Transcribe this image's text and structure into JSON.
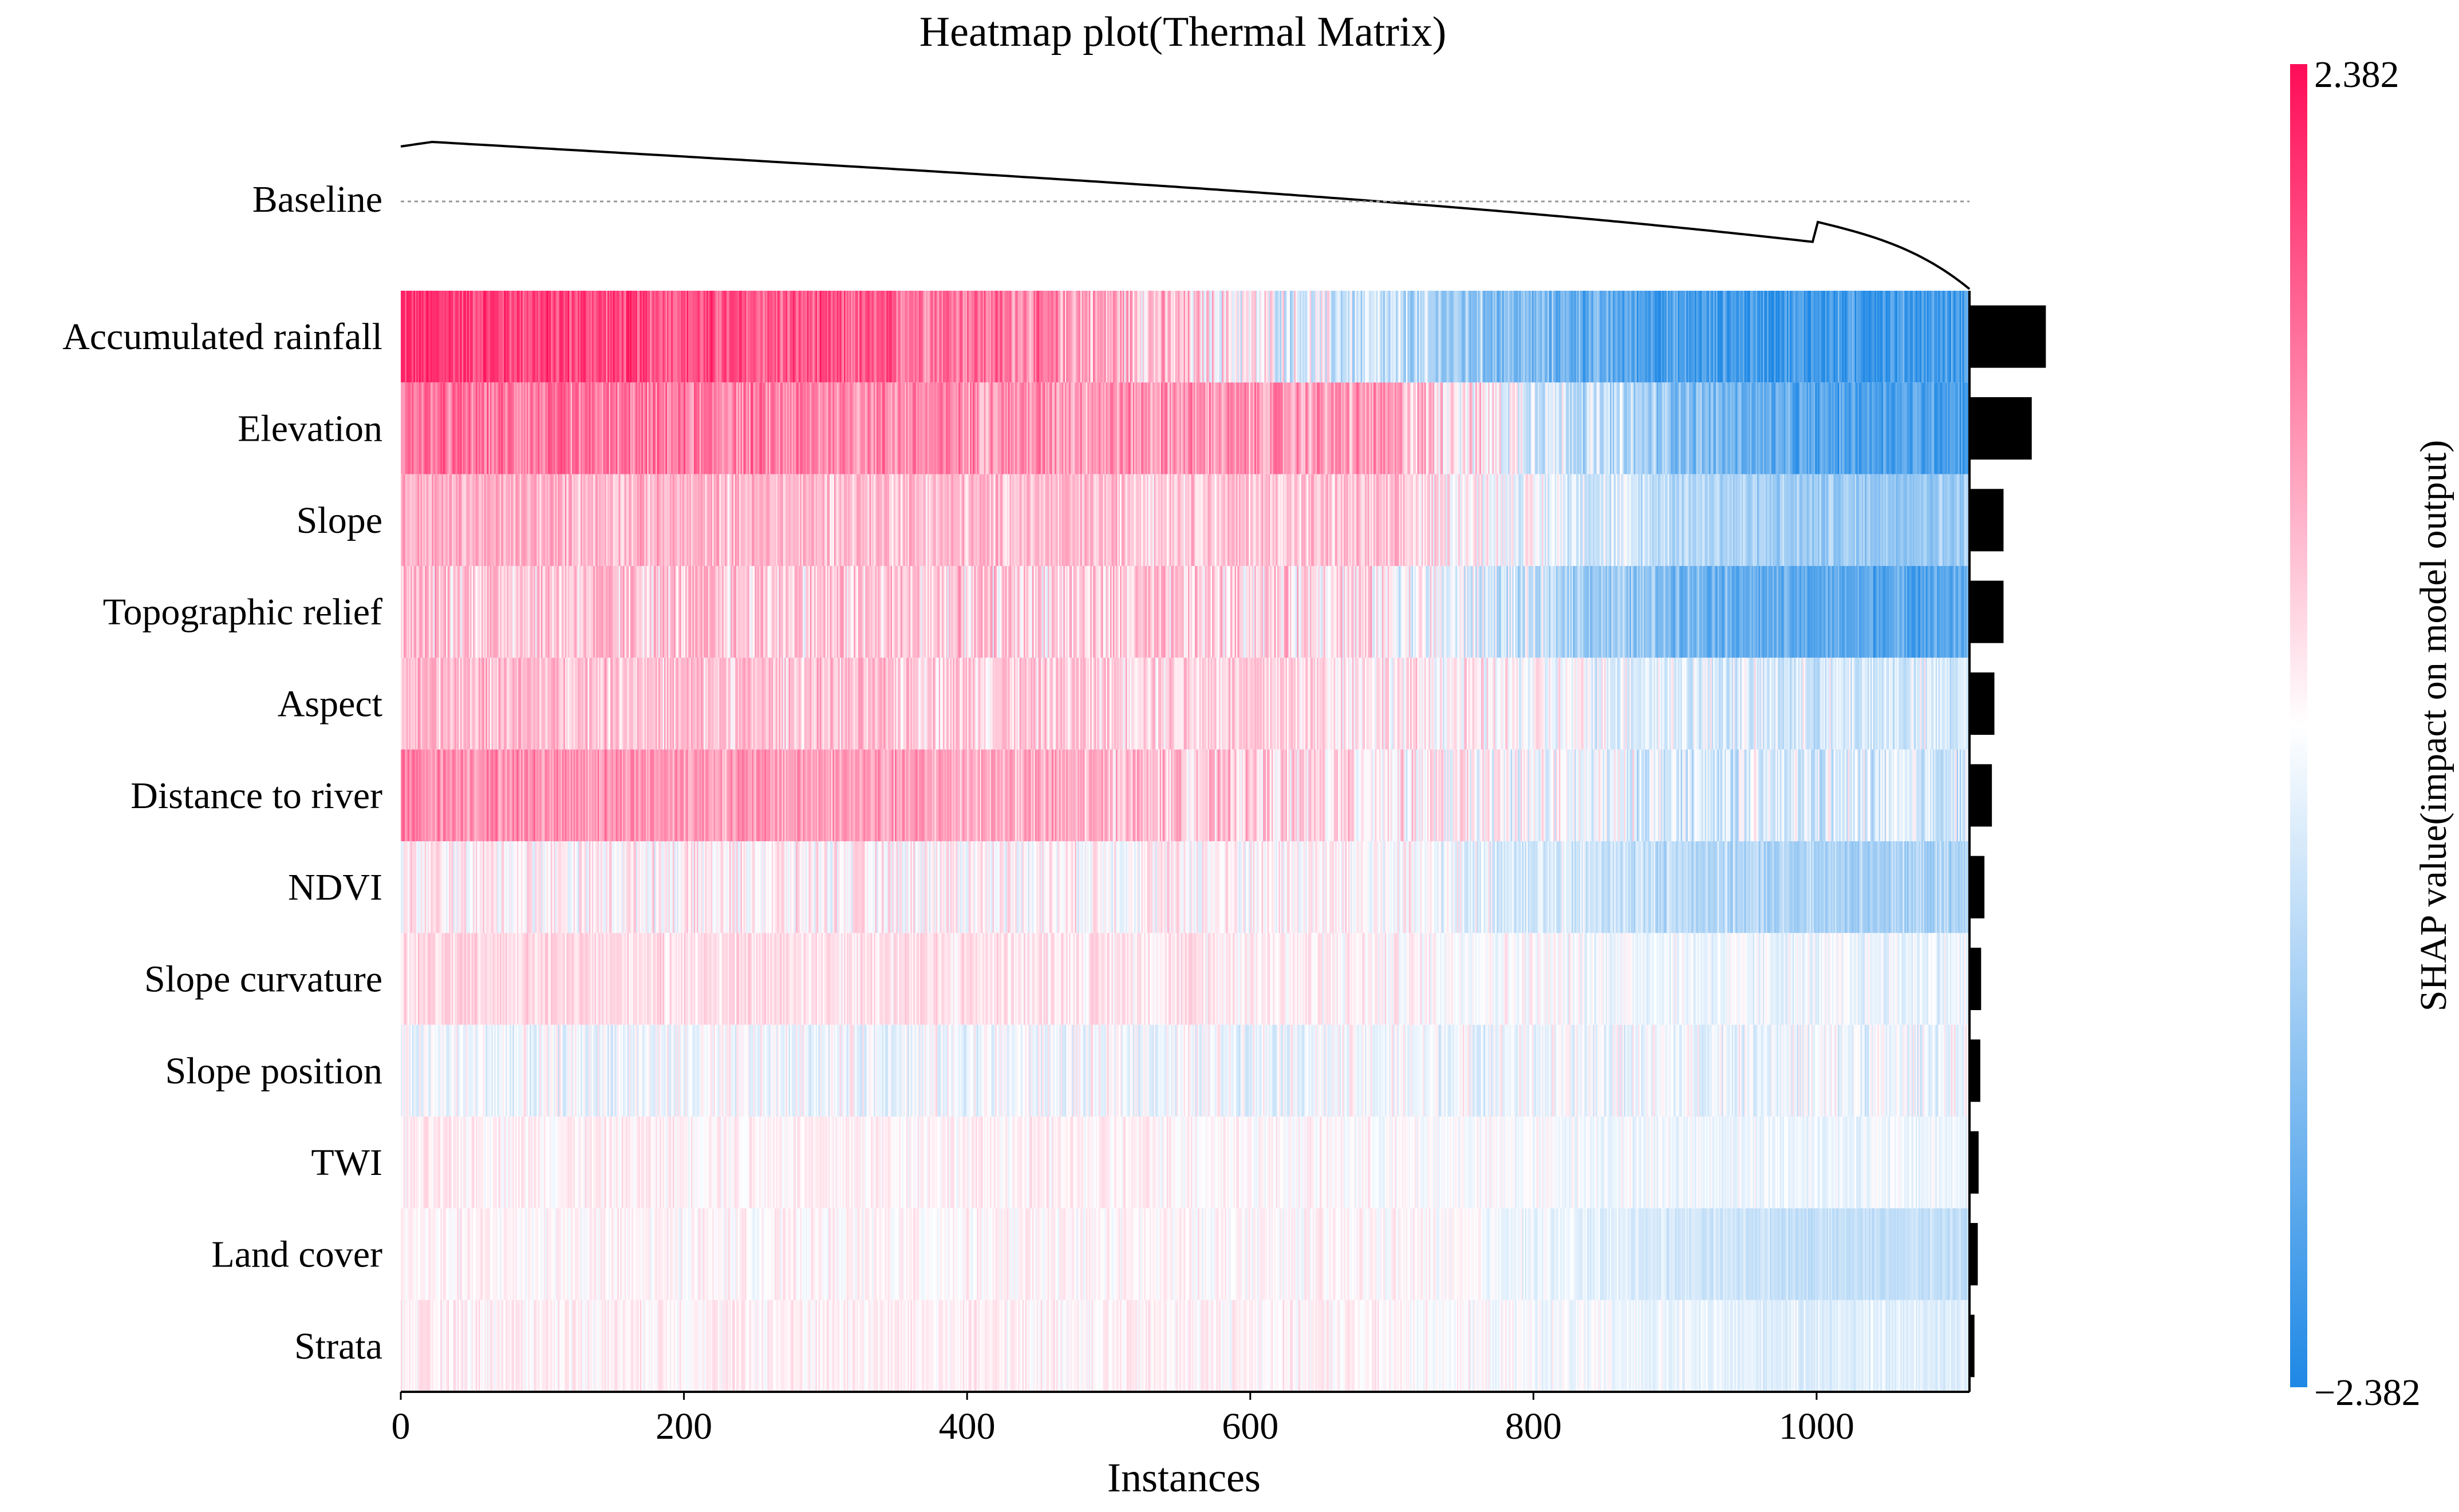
{
  "chart_data": {
    "type": "heatmap",
    "title": "Heatmap plot(Thermal Matrix)",
    "xlabel": "Instances",
    "xlim": [
      0,
      1108
    ],
    "xticks": [
      0,
      200,
      400,
      600,
      800,
      1000
    ],
    "baseline_label": "Baseline",
    "features": [
      {
        "name": "Accumulated rainfall",
        "importance": 0.92,
        "front": 1.9,
        "tail": -1.9,
        "mid": 0.37,
        "noise": 0.55
      },
      {
        "name": "Elevation",
        "importance": 0.75,
        "front": 1.2,
        "tail": -1.7,
        "mid": 0.62,
        "noise": 0.5
      },
      {
        "name": "Slope",
        "importance": 0.41,
        "front": 0.6,
        "tail": -0.85,
        "mid": 0.62,
        "noise": 0.35
      },
      {
        "name": "Topographic relief",
        "importance": 0.41,
        "front": 0.45,
        "tail": -1.6,
        "mid": 0.6,
        "noise": 0.45
      },
      {
        "name": "Aspect",
        "importance": 0.3,
        "front": 0.5,
        "tail": -0.3,
        "mid": 0.55,
        "noise": 0.35
      },
      {
        "name": "Distance to river",
        "importance": 0.27,
        "front": 1.0,
        "tail": -0.3,
        "mid": 0.4,
        "noise": 0.4
      },
      {
        "name": "NDVI",
        "importance": 0.18,
        "front": 0.1,
        "tail": -0.7,
        "mid": 0.6,
        "noise": 0.3
      },
      {
        "name": "Slope curvature",
        "importance": 0.14,
        "front": 0.25,
        "tail": -0.12,
        "mid": 0.5,
        "noise": 0.2
      },
      {
        "name": "Slope position",
        "importance": 0.13,
        "front": -0.1,
        "tail": -0.1,
        "mid": 0.5,
        "noise": 0.25
      },
      {
        "name": "TWI",
        "importance": 0.11,
        "front": 0.1,
        "tail": -0.1,
        "mid": 0.5,
        "noise": 0.15
      },
      {
        "name": "Land cover",
        "importance": 0.1,
        "front": 0.05,
        "tail": -0.45,
        "mid": 0.65,
        "noise": 0.15
      },
      {
        "name": "Strata",
        "importance": 0.06,
        "front": 0.1,
        "tail": -0.2,
        "mid": 0.6,
        "noise": 0.15
      }
    ],
    "colorbar": {
      "label": "SHAP value(impact on model output)",
      "max_label": "2.382",
      "min_label": "−2.382",
      "vmax": 2.382,
      "vmin": -2.382,
      "color_high": "#ff0d57",
      "color_mid": "#ffffff",
      "color_low": "#1e88e5"
    },
    "output_curve": {
      "start": 0.0,
      "end": 1.0
    }
  }
}
